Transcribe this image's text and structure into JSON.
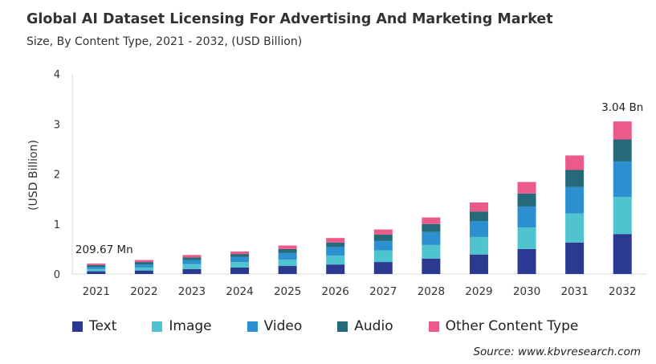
{
  "chart_data": {
    "type": "bar",
    "stacked": true,
    "title": "Global AI Dataset Licensing For Advertising And Marketing Market",
    "subtitle": "Size, By Content Type, 2021 - 2032, (USD Billion)",
    "xlabel": "",
    "ylabel": "(USD Billion)",
    "ylim": [
      0,
      4
    ],
    "yticks": [
      "0",
      "1",
      "2",
      "3",
      "4"
    ],
    "grid": false,
    "legend_position": "bottom",
    "categories": [
      "2021",
      "2022",
      "2023",
      "2024",
      "2025",
      "2026",
      "2027",
      "2028",
      "2029",
      "2030",
      "2031",
      "2032"
    ],
    "series": [
      {
        "name": "Text",
        "color": "#2b3990",
        "values": [
          0.055,
          0.07,
          0.1,
          0.13,
          0.16,
          0.19,
          0.24,
          0.31,
          0.39,
          0.5,
          0.63,
          0.8
        ]
      },
      {
        "name": "Image",
        "color": "#4fc3cf",
        "values": [
          0.045,
          0.06,
          0.1,
          0.11,
          0.13,
          0.18,
          0.23,
          0.27,
          0.35,
          0.43,
          0.58,
          0.74
        ]
      },
      {
        "name": "Video",
        "color": "#2b8fd0",
        "values": [
          0.045,
          0.06,
          0.08,
          0.1,
          0.13,
          0.17,
          0.19,
          0.26,
          0.32,
          0.42,
          0.53,
          0.71
        ]
      },
      {
        "name": "Audio",
        "color": "#25697a",
        "values": [
          0.035,
          0.05,
          0.05,
          0.06,
          0.08,
          0.09,
          0.13,
          0.16,
          0.19,
          0.26,
          0.34,
          0.44
        ]
      },
      {
        "name": "Other Content Type",
        "color": "#ec5a8a",
        "values": [
          0.03,
          0.04,
          0.05,
          0.05,
          0.07,
          0.09,
          0.1,
          0.13,
          0.18,
          0.23,
          0.29,
          0.36
        ]
      }
    ],
    "annotations": [
      {
        "category": "2021",
        "text": "209.67 Mn"
      },
      {
        "category": "2032",
        "text": "3.04 Bn"
      }
    ]
  },
  "source": "Source: www.kbvresearch.com"
}
